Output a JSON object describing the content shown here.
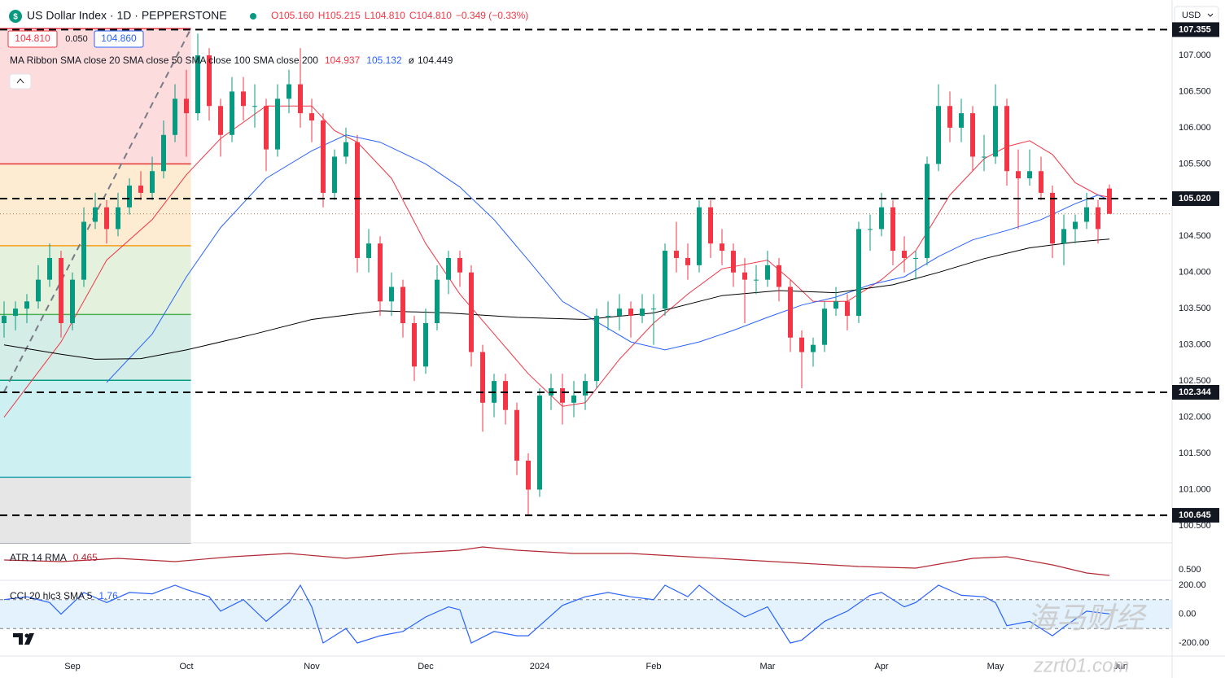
{
  "header": {
    "symbol": "US Dollar Index · 1D · PEPPERSTONE",
    "open": "O105.160",
    "high": "H105.215",
    "low": "L104.810",
    "close": "C104.810",
    "change": "−0.349 (−0.33%)",
    "bid": "104.810",
    "spread": "0.050",
    "ask": "104.860",
    "currency": "USD"
  },
  "ma_legend": {
    "label": "MA Ribbon SMA close 20 SMA close 50 SMA close 100 SMA close 200",
    "values": [
      "104.937",
      "105.132",
      "ø",
      "104.449"
    ]
  },
  "watermark": [
    "海马财经",
    "zzrt01.com"
  ],
  "chart_data": [
    {
      "type": "candlestick",
      "categories": [
        null,
        null,
        null,
        null,
        null,
        null,
        "Sep",
        null,
        null,
        null,
        null,
        null,
        null,
        null,
        null,
        null,
        "Oct",
        null,
        null,
        null,
        null,
        null,
        null,
        null,
        null,
        null,
        null,
        "Nov",
        null,
        null,
        null,
        null,
        null,
        null,
        null,
        null,
        null,
        "Dec",
        null,
        null,
        null,
        null,
        null,
        null,
        null,
        null,
        null,
        "2024",
        null,
        null,
        null,
        null,
        null,
        null,
        null,
        null,
        null,
        "Feb",
        null,
        null,
        null,
        null,
        null,
        null,
        null,
        null,
        null,
        "Mar",
        null,
        null,
        null,
        null,
        null,
        null,
        null,
        null,
        null,
        "Apr",
        null,
        null,
        null,
        null,
        null,
        null,
        null,
        null,
        null,
        "May",
        null,
        null,
        null,
        null,
        null,
        null,
        null,
        null,
        null,
        null,
        "Jun"
      ],
      "ohlc": [
        [
          103.3,
          103.6,
          103.1,
          103.4
        ],
        [
          103.4,
          103.6,
          103.2,
          103.5
        ],
        [
          103.5,
          103.7,
          103.3,
          103.6
        ],
        [
          103.6,
          104.1,
          103.5,
          103.9
        ],
        [
          103.9,
          104.4,
          103.8,
          104.2
        ],
        [
          104.2,
          104.3,
          103.1,
          103.3
        ],
        [
          103.3,
          104.0,
          103.2,
          103.9
        ],
        [
          103.9,
          104.9,
          103.8,
          104.7
        ],
        [
          104.7,
          105.1,
          104.6,
          104.9
        ],
        [
          104.9,
          105.0,
          104.4,
          104.6
        ],
        [
          104.6,
          105.1,
          104.5,
          104.9
        ],
        [
          104.9,
          105.3,
          104.8,
          105.2
        ],
        [
          105.2,
          105.4,
          105.0,
          105.1
        ],
        [
          105.1,
          105.6,
          105.0,
          105.4
        ],
        [
          105.4,
          106.1,
          105.3,
          105.9
        ],
        [
          105.9,
          106.6,
          105.8,
          106.4
        ],
        [
          106.4,
          106.8,
          105.6,
          106.2
        ],
        [
          106.2,
          107.3,
          106.1,
          107.0
        ],
        [
          107.0,
          107.1,
          106.1,
          106.3
        ],
        [
          106.3,
          106.4,
          105.6,
          105.9
        ],
        [
          105.9,
          106.7,
          105.8,
          106.5
        ],
        [
          106.5,
          106.7,
          106.1,
          106.3
        ],
        [
          106.3,
          106.6,
          106.0,
          106.3
        ],
        [
          106.3,
          106.4,
          105.4,
          105.7
        ],
        [
          105.7,
          106.6,
          105.6,
          106.4
        ],
        [
          106.4,
          106.8,
          106.2,
          106.6
        ],
        [
          106.6,
          107.1,
          106.0,
          106.2
        ],
        [
          106.2,
          106.4,
          105.8,
          106.1
        ],
        [
          106.1,
          106.2,
          104.9,
          105.1
        ],
        [
          105.1,
          105.7,
          105.0,
          105.6
        ],
        [
          105.6,
          106.0,
          105.5,
          105.8
        ],
        [
          105.8,
          105.9,
          104.0,
          104.2
        ],
        [
          104.2,
          104.6,
          104.0,
          104.4
        ],
        [
          104.4,
          104.5,
          103.4,
          103.6
        ],
        [
          103.6,
          104.0,
          103.4,
          103.8
        ],
        [
          103.8,
          103.9,
          103.1,
          103.3
        ],
        [
          103.3,
          103.4,
          102.5,
          102.7
        ],
        [
          102.7,
          103.5,
          102.6,
          103.3
        ],
        [
          103.3,
          104.1,
          103.2,
          103.9
        ],
        [
          103.9,
          104.3,
          103.7,
          104.2
        ],
        [
          104.2,
          104.3,
          103.8,
          104.0
        ],
        [
          104.0,
          104.1,
          102.7,
          102.9
        ],
        [
          102.9,
          103.0,
          101.8,
          102.2
        ],
        [
          102.2,
          102.6,
          102.0,
          102.5
        ],
        [
          102.5,
          102.6,
          101.9,
          102.1
        ],
        [
          102.1,
          102.2,
          101.2,
          101.4
        ],
        [
          101.4,
          101.5,
          100.65,
          101.0
        ],
        [
          101.0,
          102.4,
          100.9,
          102.3
        ],
        [
          102.3,
          102.6,
          102.1,
          102.4
        ],
        [
          102.4,
          102.6,
          101.9,
          102.2
        ],
        [
          102.2,
          102.5,
          102.0,
          102.3
        ],
        [
          102.3,
          102.6,
          102.1,
          102.5
        ],
        [
          102.5,
          103.5,
          102.4,
          103.4
        ],
        [
          103.4,
          103.6,
          103.2,
          103.4
        ],
        [
          103.4,
          103.7,
          103.2,
          103.5
        ],
        [
          103.5,
          103.6,
          103.1,
          103.4
        ],
        [
          103.4,
          103.7,
          103.3,
          103.5
        ],
        [
          103.5,
          103.7,
          103.0,
          103.5
        ],
        [
          103.5,
          104.4,
          103.4,
          104.3
        ],
        [
          104.3,
          104.7,
          104.0,
          104.2
        ],
        [
          104.2,
          104.4,
          103.9,
          104.1
        ],
        [
          104.1,
          105.0,
          104.0,
          104.9
        ],
        [
          104.9,
          105.0,
          104.2,
          104.4
        ],
        [
          104.4,
          104.6,
          104.1,
          104.3
        ],
        [
          104.3,
          104.4,
          103.8,
          104.0
        ],
        [
          104.0,
          104.2,
          103.3,
          103.9
        ],
        [
          103.9,
          104.1,
          103.7,
          103.9
        ],
        [
          103.9,
          104.3,
          103.8,
          104.1
        ],
        [
          104.1,
          104.2,
          103.6,
          103.8
        ],
        [
          103.8,
          103.9,
          102.9,
          103.1
        ],
        [
          103.1,
          103.2,
          102.4,
          102.9
        ],
        [
          102.9,
          103.1,
          102.7,
          103.0
        ],
        [
          103.0,
          103.6,
          102.9,
          103.5
        ],
        [
          103.5,
          103.8,
          103.4,
          103.6
        ],
        [
          103.6,
          103.7,
          103.2,
          103.4
        ],
        [
          103.4,
          104.7,
          103.3,
          104.6
        ],
        [
          104.6,
          104.8,
          104.3,
          104.6
        ],
        [
          104.6,
          105.1,
          104.5,
          104.9
        ],
        [
          104.9,
          105.0,
          104.1,
          104.3
        ],
        [
          104.3,
          104.5,
          104.0,
          104.2
        ],
        [
          104.2,
          104.3,
          103.9,
          104.2
        ],
        [
          104.2,
          105.6,
          104.1,
          105.5
        ],
        [
          105.5,
          106.6,
          105.4,
          106.3
        ],
        [
          106.3,
          106.5,
          105.8,
          106.0
        ],
        [
          106.0,
          106.4,
          105.8,
          106.2
        ],
        [
          106.2,
          106.3,
          105.4,
          105.6
        ],
        [
          105.6,
          105.9,
          105.4,
          105.6
        ],
        [
          105.6,
          106.6,
          105.5,
          106.3
        ],
        [
          106.3,
          106.4,
          105.2,
          105.4
        ],
        [
          105.4,
          105.7,
          104.6,
          105.3
        ],
        [
          105.3,
          105.7,
          105.2,
          105.4
        ],
        [
          105.4,
          105.6,
          105.0,
          105.1
        ],
        [
          105.1,
          105.2,
          104.2,
          104.4
        ],
        [
          104.4,
          104.8,
          104.1,
          104.6
        ],
        [
          104.6,
          104.8,
          104.4,
          104.7
        ],
        [
          104.7,
          105.1,
          104.6,
          104.9
        ],
        [
          104.9,
          105.0,
          104.4,
          104.6
        ],
        [
          105.16,
          105.215,
          104.81,
          104.81
        ],
        null
      ],
      "up_color": "#089981",
      "down_color": "#f23645",
      "ylim": [
        100.286,
        107.427
      ],
      "yticks": [
        {
          "value": 100.5,
          "label": "100.500"
        },
        {
          "value": 101,
          "label": "101.000"
        },
        {
          "value": 101.5,
          "label": "101.500"
        },
        {
          "value": 102,
          "label": "102.000"
        },
        {
          "value": 102.5,
          "label": "102.500"
        },
        {
          "value": 103,
          "label": "103.000"
        },
        {
          "value": 103.5,
          "label": "103.500"
        },
        {
          "value": 104,
          "label": "104.000"
        },
        {
          "value": 104.5,
          "label": "104.500"
        },
        {
          "value": 105,
          "label": "105.000"
        },
        {
          "value": 105.5,
          "label": "105.500"
        },
        {
          "value": 106,
          "label": "106.000"
        },
        {
          "value": 106.5,
          "label": "106.500"
        },
        {
          "value": 107,
          "label": "107.000"
        }
      ],
      "series": [
        {
          "color": "#f23645",
          "x": [
            0,
            5,
            9,
            13,
            16,
            19,
            23,
            27,
            29,
            31,
            34,
            37,
            40,
            43,
            46,
            49,
            51,
            54,
            57,
            60,
            63,
            67,
            69,
            71,
            74,
            77,
            80,
            83,
            86,
            88,
            90,
            92,
            94,
            96,
            97
          ],
          "values": [
            102.0,
            103.04,
            104.17,
            104.73,
            105.35,
            105.85,
            106.3,
            106.3,
            105.96,
            105.8,
            105.3,
            104.4,
            103.7,
            103.15,
            102.6,
            102.15,
            102.2,
            102.8,
            103.3,
            103.7,
            104.05,
            104.17,
            103.9,
            103.6,
            103.6,
            103.9,
            104.3,
            105.07,
            105.57,
            105.74,
            105.82,
            105.63,
            105.24,
            105.07,
            105.04
          ]
        },
        {
          "color": "#2962ff",
          "x": [
            9,
            13,
            16,
            19,
            23,
            27,
            30,
            33,
            37,
            40,
            43,
            46,
            49,
            52,
            55,
            58,
            61,
            64,
            67,
            70,
            73,
            76,
            79,
            82,
            85,
            88,
            91,
            94,
            96,
            97
          ],
          "values": [
            102.48,
            103.15,
            103.94,
            104.62,
            105.3,
            105.68,
            105.9,
            105.8,
            105.5,
            105.18,
            104.73,
            104.17,
            103.6,
            103.32,
            103.04,
            102.93,
            103.04,
            103.2,
            103.38,
            103.55,
            103.66,
            103.83,
            103.94,
            104.22,
            104.45,
            104.58,
            104.73,
            104.95,
            105.07,
            105.0
          ]
        },
        {
          "color": "#000000",
          "x": [
            0,
            5,
            8,
            12,
            16,
            22,
            27,
            33,
            39,
            45,
            51,
            57,
            63,
            68,
            73,
            78,
            82,
            86,
            90,
            94,
            97
          ],
          "values": [
            103.0,
            102.87,
            102.8,
            102.81,
            102.93,
            103.15,
            103.35,
            103.47,
            103.44,
            103.38,
            103.35,
            103.44,
            103.68,
            103.75,
            103.72,
            103.83,
            104.0,
            104.19,
            104.34,
            104.42,
            104.46
          ]
        }
      ],
      "levels": [
        {
          "value": 107.355,
          "label": "107.355"
        },
        {
          "value": 105.02,
          "label": "105.020"
        },
        {
          "value": 102.344,
          "label": "102.344"
        },
        {
          "value": 100.645,
          "label": "100.645"
        }
      ],
      "last_price": 104.81,
      "fib": {
        "x": [
          -0.5,
          16.4
        ],
        "levels": [
          107.37,
          105.5,
          104.37,
          103.42,
          102.51,
          101.17,
          100.26
        ],
        "fills": [
          "#fcdcdc",
          "#fdebd2",
          "#e3f1dd",
          "#d5ede7",
          "#cdf0f3",
          "#e6e6e6"
        ],
        "line_colors": [
          "#f23645",
          "#e53935",
          "#f59c1a",
          "#4caf50",
          "#089981",
          "#26a6b0",
          "#787b86"
        ]
      },
      "trend_line": {
        "x": [
          0,
          16.4
        ],
        "values": [
          102.35,
          107.37
        ],
        "color": "#787b86"
      }
    },
    {
      "type": "line",
      "title": "ATR 14 RMA",
      "value_label": "0.465",
      "color": "#b22833",
      "x": [
        0,
        5,
        10,
        15,
        20,
        25,
        30,
        35,
        40,
        42,
        45,
        50,
        55,
        60,
        65,
        70,
        75,
        80,
        85,
        88,
        92,
        95,
        97
      ],
      "values": [
        0.56,
        0.55,
        0.57,
        0.55,
        0.58,
        0.6,
        0.57,
        0.6,
        0.62,
        0.64,
        0.62,
        0.6,
        0.6,
        0.58,
        0.56,
        0.54,
        0.52,
        0.51,
        0.57,
        0.58,
        0.53,
        0.48,
        0.465
      ],
      "ylim": [
        0.44,
        0.66
      ],
      "yticks": [
        {
          "value": 0.5,
          "label": "0.500"
        }
      ]
    },
    {
      "type": "line",
      "title": "CCI 20 hlc3 SMA 5",
      "value_label": "1.76",
      "color": "#2962ff",
      "x": [
        0,
        2,
        4,
        5,
        7,
        9,
        11,
        13,
        15,
        16,
        18,
        19,
        21,
        23,
        25,
        26,
        27,
        28,
        30,
        31,
        33,
        35,
        37,
        39,
        40,
        41,
        43,
        45,
        46,
        47,
        49,
        51,
        53,
        55,
        57,
        58,
        60,
        61,
        63,
        65,
        67,
        69,
        70,
        72,
        74,
        76,
        77,
        79,
        80,
        82,
        84,
        86,
        87,
        88,
        90,
        92,
        93,
        95,
        97
      ],
      "values": [
        100,
        120,
        80,
        0,
        150,
        80,
        150,
        140,
        200,
        170,
        120,
        20,
        100,
        -50,
        80,
        200,
        50,
        -200,
        -100,
        -200,
        -150,
        -120,
        -20,
        50,
        30,
        -200,
        -120,
        -150,
        -150,
        -80,
        60,
        120,
        150,
        120,
        100,
        200,
        120,
        200,
        80,
        -20,
        50,
        -200,
        -180,
        -50,
        20,
        130,
        150,
        50,
        80,
        200,
        130,
        120,
        80,
        -80,
        -50,
        -150,
        -90,
        20,
        1.76
      ],
      "ylim": [
        -284.5,
        222.5
      ],
      "yticks": [
        {
          "value": 200,
          "label": "200.00"
        },
        {
          "value": 0,
          "label": "0.00"
        },
        {
          "value": -200,
          "label": "-200.00"
        }
      ],
      "band": [
        -100,
        100
      ],
      "band_color": "#e3f2fd"
    }
  ]
}
